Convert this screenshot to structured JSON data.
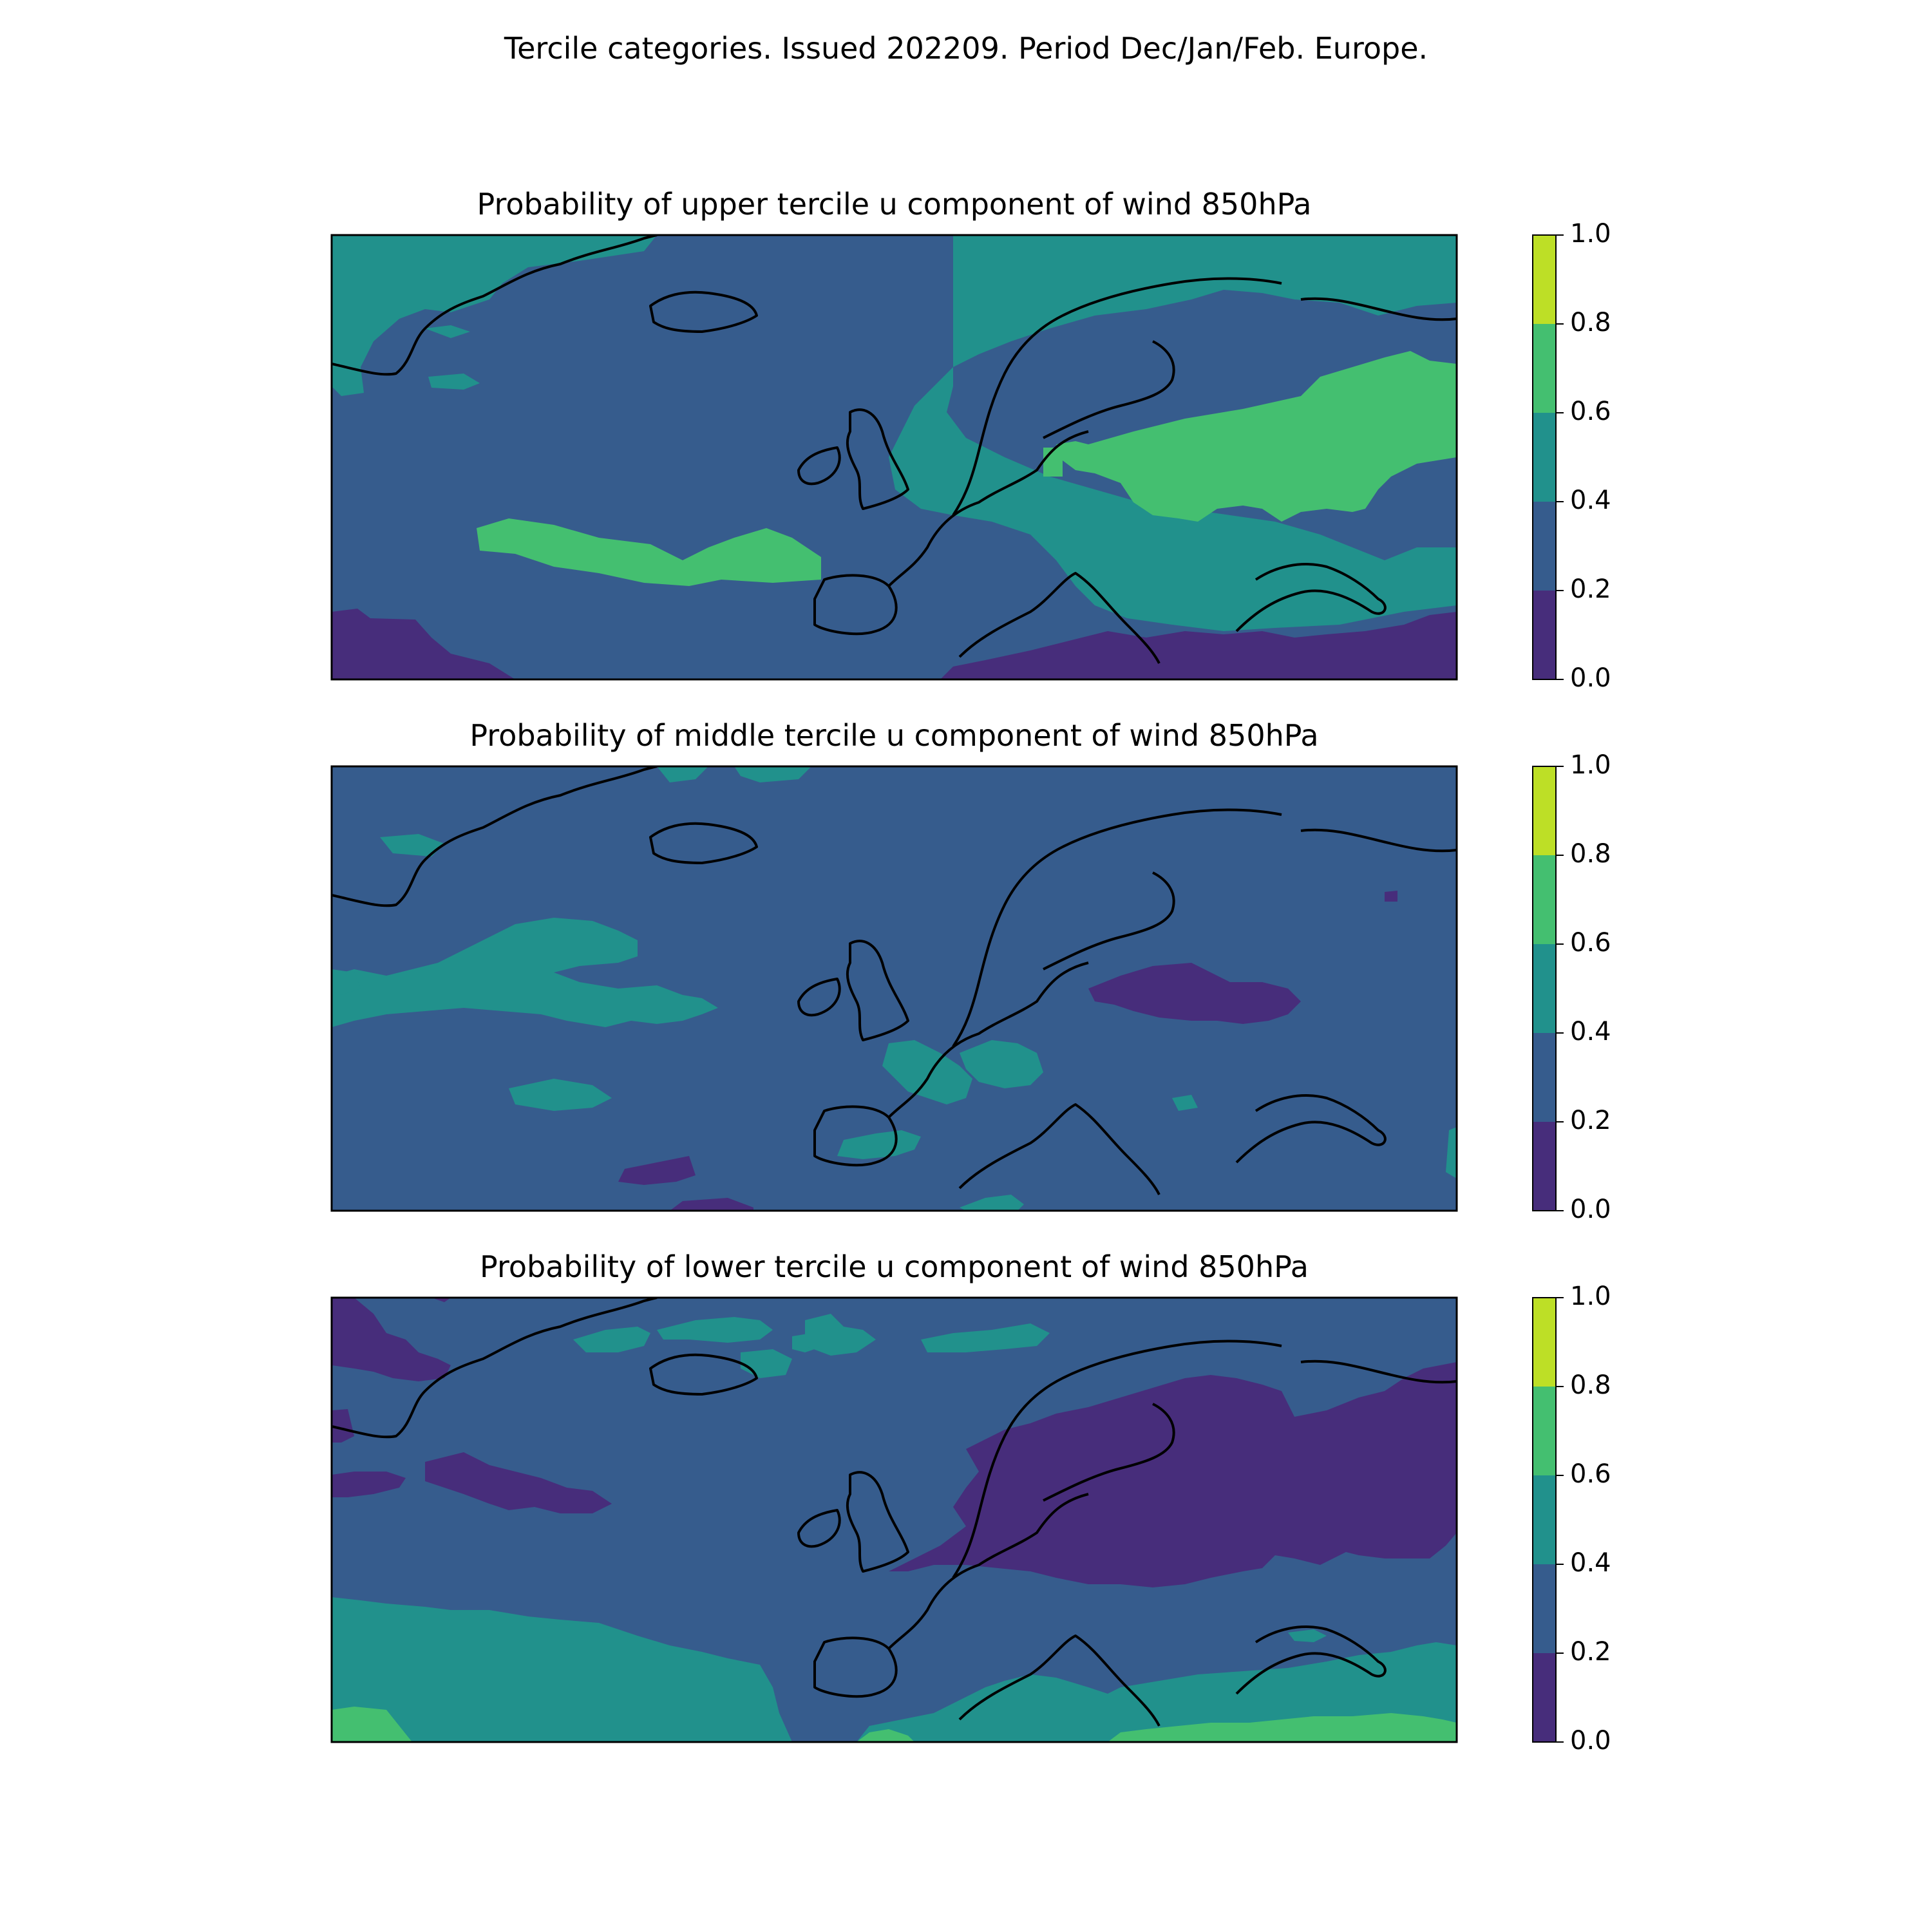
{
  "figure": {
    "suptitle": "Tercile categories. Issued 202209. Period Dec/Jan/Feb. Europe."
  },
  "colorbar": {
    "ticks": [
      "0.0",
      "0.2",
      "0.4",
      "0.6",
      "0.8",
      "1.0"
    ],
    "bins": [
      {
        "from": 0.0,
        "to": 0.2,
        "color": "#472d7b"
      },
      {
        "from": 0.2,
        "to": 0.4,
        "color": "#365c8d"
      },
      {
        "from": 0.4,
        "to": 0.6,
        "color": "#21918c"
      },
      {
        "from": 0.6,
        "to": 0.8,
        "color": "#44bf70"
      },
      {
        "from": 0.8,
        "to": 1.0,
        "color": "#bddf26"
      }
    ]
  },
  "panels": [
    {
      "id": "upper",
      "title": "Probability of upper tercile u component of wind 850hPa",
      "background_class": "0.2-0.4",
      "regions": [
        {
          "name": "greenland-high",
          "class": "0.4-0.6"
        },
        {
          "name": "atlantic-band",
          "class": "0.4-0.6"
        },
        {
          "name": "scandinavia-central-europe",
          "class": "0.4-0.6"
        },
        {
          "name": "eastern-europe-core",
          "class": "0.6-0.8"
        },
        {
          "name": "southwest-low",
          "class": "0.0-0.2"
        },
        {
          "name": "mediterranean-low",
          "class": "0.0-0.2"
        }
      ]
    },
    {
      "id": "middle",
      "title": "Probability of middle tercile u component of wind 850hPa",
      "background_class": "0.2-0.4",
      "regions": [
        {
          "name": "atlantic-band",
          "class": "0.4-0.6"
        },
        {
          "name": "france-alps",
          "class": "0.4-0.6"
        },
        {
          "name": "baltic-low",
          "class": "0.0-0.2"
        },
        {
          "name": "south-atlantic-low",
          "class": "0.0-0.2"
        }
      ]
    },
    {
      "id": "lower",
      "title": "Probability of lower tercile u component of wind 850hPa",
      "background_class": "0.2-0.4",
      "regions": [
        {
          "name": "southern-band",
          "class": "0.4-0.6"
        },
        {
          "name": "southern-edge",
          "class": "0.6-0.8"
        },
        {
          "name": "northern-patches",
          "class": "0.4-0.6"
        },
        {
          "name": "europe-low",
          "class": "0.0-0.2"
        },
        {
          "name": "greenland-low",
          "class": "0.0-0.2"
        },
        {
          "name": "atlantic-low-strip",
          "class": "0.0-0.2"
        }
      ]
    }
  ]
}
